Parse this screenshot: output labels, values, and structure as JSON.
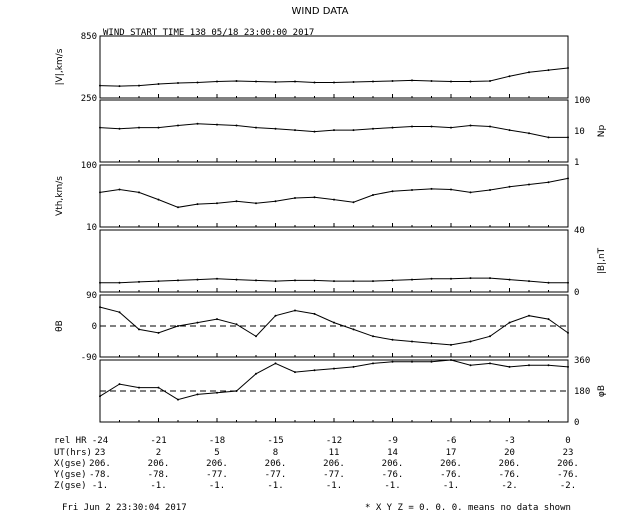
{
  "title": "WIND DATA",
  "subtitle": "WIND START TIME 138 05/18 23:00:00 2017",
  "footer_left": "Fri Jun  2 23:30:04 2017",
  "footer_right": "* X Y Z = 0. 0. 0. means no data shown",
  "chart_data": {
    "type": "line",
    "x_label": "rel HR",
    "x_ticks": [
      -24,
      -21,
      -18,
      -15,
      -12,
      -9,
      -6,
      -3,
      0
    ],
    "x_tick_labels": [
      "-24",
      "-21",
      "-18",
      "-15",
      "-12",
      "-9",
      "-6",
      "-3",
      "0"
    ],
    "xlim": [
      -24,
      0
    ],
    "table_rows": [
      {
        "label": "UT(hrs)",
        "values": [
          "23",
          "2",
          "5",
          "8",
          "11",
          "14",
          "17",
          "20",
          "23"
        ]
      },
      {
        "label": "X(gse)",
        "values": [
          "206.",
          "206.",
          "206.",
          "206.",
          "206.",
          "206.",
          "206.",
          "206.",
          "206."
        ]
      },
      {
        "label": "Y(gse)",
        "values": [
          "-78.",
          "-78.",
          "-77.",
          "-77.",
          "-77.",
          "-76.",
          "-76.",
          "-76.",
          "-76."
        ]
      },
      {
        "label": "Z(gse)",
        "values": [
          "-1.",
          "-1.",
          "-1.",
          "-1.",
          "-1.",
          "-1.",
          "-1.",
          "-2.",
          "-2."
        ]
      }
    ],
    "panels": [
      {
        "id": "speed",
        "left_label": "|V|,km/s",
        "right_label": "",
        "scale": "linear",
        "ylim": [
          250,
          850
        ],
        "left_ticks": [
          "850",
          "250"
        ],
        "right_ticks": [],
        "x": [
          -24,
          -23,
          -22,
          -21,
          -20,
          -19,
          -18,
          -17,
          -16,
          -15,
          -14,
          -13,
          -12,
          -11,
          -10,
          -9,
          -8,
          -7,
          -6,
          -5,
          -4,
          -3,
          -2,
          -1,
          0
        ],
        "y": [
          370,
          365,
          370,
          385,
          395,
          400,
          410,
          415,
          410,
          405,
          410,
          400,
          400,
          405,
          410,
          415,
          420,
          415,
          410,
          410,
          415,
          460,
          500,
          520,
          540
        ]
      },
      {
        "id": "density",
        "left_label": "",
        "right_label": "Np",
        "scale": "log",
        "ylim": [
          0.7,
          100
        ],
        "left_ticks": [],
        "right_ticks": [
          "100",
          "10",
          "1"
        ],
        "x": [
          -24,
          -23,
          -22,
          -21,
          -20,
          -19,
          -18,
          -17,
          -16,
          -15,
          -14,
          -13,
          -12,
          -11,
          -10,
          -9,
          -8,
          -7,
          -6,
          -5,
          -4,
          -3,
          -2,
          -1,
          0
        ],
        "y": [
          11,
          10,
          11,
          11,
          13,
          15,
          14,
          13,
          11,
          10,
          9,
          8,
          9,
          9,
          10,
          11,
          12,
          12,
          11,
          13,
          12,
          9,
          7,
          5,
          5
        ]
      },
      {
        "id": "thermal",
        "left_label": "Vth,km/s",
        "right_label": "",
        "scale": "log",
        "ylim": [
          10,
          120
        ],
        "left_ticks": [
          "100",
          "10"
        ],
        "right_ticks": [],
        "x": [
          -24,
          -23,
          -22,
          -21,
          -20,
          -19,
          -18,
          -17,
          -16,
          -15,
          -14,
          -13,
          -12,
          -11,
          -10,
          -9,
          -8,
          -7,
          -6,
          -5,
          -4,
          -3,
          -2,
          -1,
          0
        ],
        "y": [
          40,
          45,
          40,
          30,
          22,
          25,
          26,
          28,
          26,
          28,
          32,
          33,
          30,
          27,
          36,
          42,
          44,
          46,
          45,
          40,
          44,
          50,
          55,
          60,
          70
        ]
      },
      {
        "id": "field",
        "left_label": "",
        "right_label": "|B|,nT",
        "scale": "linear",
        "ylim": [
          0,
          40
        ],
        "left_ticks": [],
        "right_ticks": [
          "40",
          "0"
        ],
        "x": [
          -24,
          -23,
          -22,
          -21,
          -20,
          -19,
          -18,
          -17,
          -16,
          -15,
          -14,
          -13,
          -12,
          -11,
          -10,
          -9,
          -8,
          -7,
          -6,
          -5,
          -4,
          -3,
          -2,
          -1,
          0
        ],
        "y": [
          6,
          6,
          6.5,
          7,
          7.5,
          8,
          8.5,
          8,
          7.5,
          7,
          7.5,
          7.5,
          7,
          7,
          7,
          7.5,
          8,
          8.5,
          8.5,
          9,
          9,
          8,
          7,
          6,
          6
        ]
      },
      {
        "id": "theta",
        "left_label": "θB",
        "right_label": "",
        "scale": "linear",
        "ylim": [
          -90,
          90
        ],
        "left_ticks": [
          "90",
          "0",
          "-90"
        ],
        "right_ticks": [],
        "ref_lines": [
          0
        ],
        "x": [
          -24,
          -23,
          -22,
          -21,
          -20,
          -19,
          -18,
          -17,
          -16,
          -15,
          -14,
          -13,
          -12,
          -11,
          -10,
          -9,
          -8,
          -7,
          -6,
          -5,
          -4,
          -3,
          -2,
          -1,
          0
        ],
        "y": [
          55,
          40,
          -10,
          -20,
          0,
          10,
          20,
          5,
          -30,
          30,
          45,
          35,
          10,
          -10,
          -30,
          -40,
          -45,
          -50,
          -55,
          -45,
          -30,
          10,
          30,
          20,
          -20
        ]
      },
      {
        "id": "phi",
        "left_label": "",
        "right_label": "φB",
        "scale": "linear",
        "ylim": [
          0,
          360
        ],
        "left_ticks": [],
        "right_ticks": [
          "360",
          "180",
          "0"
        ],
        "ref_lines": [
          180
        ],
        "x": [
          -24,
          -23,
          -22,
          -21,
          -20,
          -19,
          -18,
          -17,
          -16,
          -15,
          -14,
          -13,
          -12,
          -11,
          -10,
          -9,
          -8,
          -7,
          -6,
          -5,
          -4,
          -3,
          -2,
          -1,
          0
        ],
        "y": [
          150,
          220,
          200,
          200,
          130,
          160,
          170,
          180,
          280,
          340,
          290,
          300,
          310,
          320,
          340,
          350,
          350,
          350,
          360,
          330,
          340,
          320,
          330,
          330,
          320
        ]
      }
    ]
  }
}
